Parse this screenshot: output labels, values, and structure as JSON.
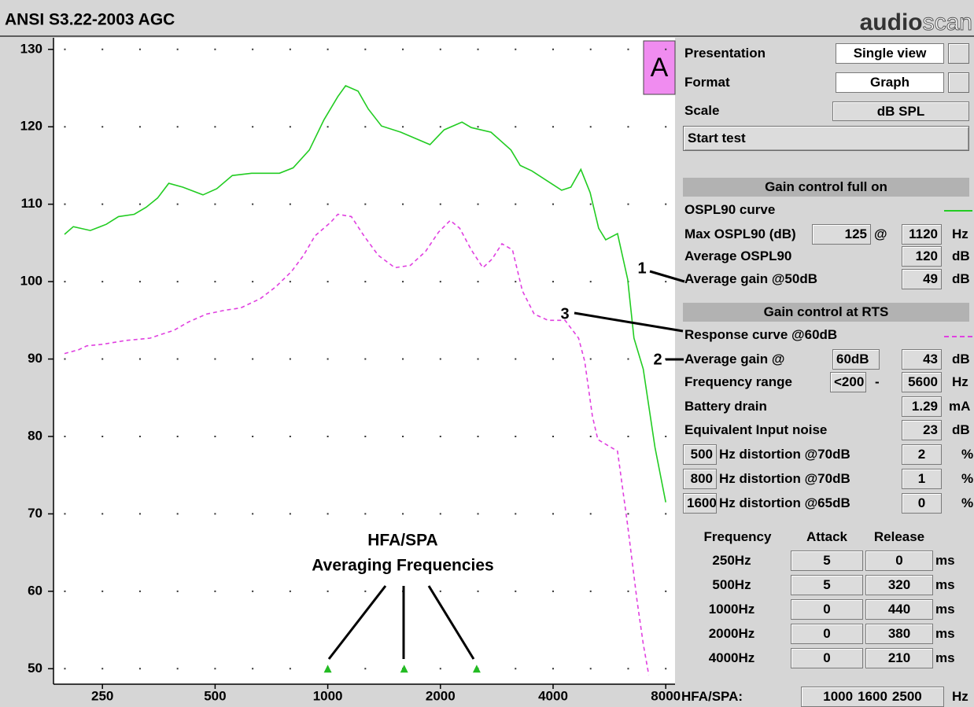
{
  "header": {
    "title": "ANSI S3.22-2003 AGC",
    "logo_bold": "audio",
    "logo_light": "scan"
  },
  "view_label": "A",
  "settings": [
    {
      "label": "Presentation",
      "value": "Single view"
    },
    {
      "label": "Format",
      "value": "Graph"
    },
    {
      "label": "Scale",
      "value": "dB SPL"
    }
  ],
  "start_button": "Start test",
  "full_on": {
    "heading": "Gain control full on",
    "max_label": "Max OSPL90 (dB)",
    "max_value": "125",
    "at": "@",
    "max_freq": "1120",
    "max_unit": "Hz",
    "avg_label": "Average OSPL90",
    "avg_value": "120",
    "avg_unit": "dB",
    "gain_label": "Average gain @50dB",
    "gain_value": "49",
    "gain_unit": "dB"
  },
  "rts": {
    "heading": "Gain control at RTS",
    "gain_label": "Average gain @",
    "gain_level": "60dB",
    "gain_value": "43",
    "gain_unit": "dB",
    "range_label": "Frequency range",
    "range_low": "<200",
    "range_sep": "-",
    "range_high": "5600",
    "range_unit": "Hz",
    "battery_label": "Battery drain",
    "battery_value": "1.29",
    "battery_unit": "mA",
    "ein_label": "Equivalent Input noise",
    "ein_value": "23",
    "ein_unit": "dB",
    "distortion": [
      {
        "freq": "500",
        "label": "Hz distortion @70dB",
        "value": "2",
        "unit": "%"
      },
      {
        "freq": "800",
        "label": "Hz distortion @70dB",
        "value": "1",
        "unit": "%"
      },
      {
        "freq": "1600",
        "label": "Hz distortion @65dB",
        "value": "0",
        "unit": "%"
      }
    ]
  },
  "timing": {
    "headers": [
      "Frequency",
      "Attack",
      "Release"
    ],
    "rows": [
      [
        "250Hz",
        "5",
        "0",
        "ms"
      ],
      [
        "500Hz",
        "5",
        "320",
        "ms"
      ],
      [
        "1000Hz",
        "0",
        "440",
        "ms"
      ],
      [
        "2000Hz",
        "0",
        "380",
        "ms"
      ],
      [
        "4000Hz",
        "0",
        "210",
        "ms"
      ]
    ]
  },
  "hfa": {
    "label": "HFA/SPA:",
    "unit": "Hz"
  },
  "chart_data": {
    "type": "line",
    "x_scale": "log",
    "grid": "dotted",
    "xlim": [
      185,
      8470
    ],
    "ylim": [
      48,
      131.5
    ],
    "xticks": [
      250,
      500,
      1000,
      2000,
      4000,
      8000
    ],
    "yticks": [
      50,
      60,
      70,
      80,
      90,
      100,
      110,
      120,
      130
    ],
    "series": [
      {
        "name": "OSPL90 curve",
        "color": "#22cc22",
        "dash": "solid",
        "x": [
          198,
          209,
          232,
          256,
          276,
          304,
          327,
          351,
          376,
          410,
          464,
          505,
          556,
          626,
          743,
          808,
          893,
          977,
          1064,
          1116,
          1205,
          1283,
          1392,
          1568,
          1875,
          2046,
          2284,
          2418,
          2730,
          3086,
          3267,
          3510,
          3918,
          4216,
          4462,
          4746,
          5023,
          5294,
          5530,
          5946,
          6329,
          6580,
          6966,
          7487,
          8000
        ],
        "values": [
          106.1,
          107.1,
          106.6,
          107.4,
          108.4,
          108.7,
          109.6,
          110.8,
          112.7,
          112.2,
          111.2,
          112.0,
          113.7,
          114.0,
          114.0,
          114.7,
          117.0,
          120.9,
          123.9,
          125.3,
          124.6,
          122.3,
          120.1,
          119.3,
          117.7,
          119.6,
          120.6,
          119.9,
          119.3,
          117.0,
          115.0,
          114.3,
          112.8,
          111.8,
          112.2,
          114.5,
          111.5,
          106.9,
          105.4,
          106.2,
          100.3,
          92.7,
          88.7,
          78.6,
          71.5
        ]
      },
      {
        "name": "Response curve @60dB",
        "color": "#e040e0",
        "dash": "dashed",
        "x": [
          198,
          216,
          227,
          250,
          289,
          335,
          360,
          388,
          425,
          474,
          531,
          585,
          660,
          725,
          800,
          862,
          924,
          1020,
          1064,
          1156,
          1250,
          1364,
          1511,
          1663,
          1825,
          1978,
          2124,
          2252,
          2418,
          2598,
          2747,
          2920,
          3116,
          3312,
          3561,
          3880,
          4306,
          4680,
          4860,
          5094,
          5268,
          5946,
          6329,
          6705,
          6966,
          7204
        ],
        "values": [
          90.7,
          91.2,
          91.7,
          91.9,
          92.4,
          92.7,
          93.2,
          93.7,
          94.8,
          95.8,
          96.3,
          96.6,
          97.8,
          99.3,
          101.3,
          103.4,
          105.9,
          107.7,
          108.7,
          108.4,
          105.9,
          103.4,
          101.8,
          102.1,
          103.9,
          106.4,
          107.9,
          106.9,
          104.1,
          101.8,
          102.9,
          104.9,
          104.1,
          98.8,
          95.8,
          95.0,
          95.0,
          92.7,
          89.7,
          82.6,
          79.6,
          78.1,
          68.5,
          58.8,
          53.2,
          49.2
        ]
      }
    ],
    "hfa_frequencies": [
      1000,
      1600,
      2500
    ],
    "marker_color": "#22bb22",
    "annotation": [
      "HFA/SPA",
      "Averaging Frequencies"
    ],
    "callouts": [
      "1",
      "2",
      "3"
    ]
  }
}
